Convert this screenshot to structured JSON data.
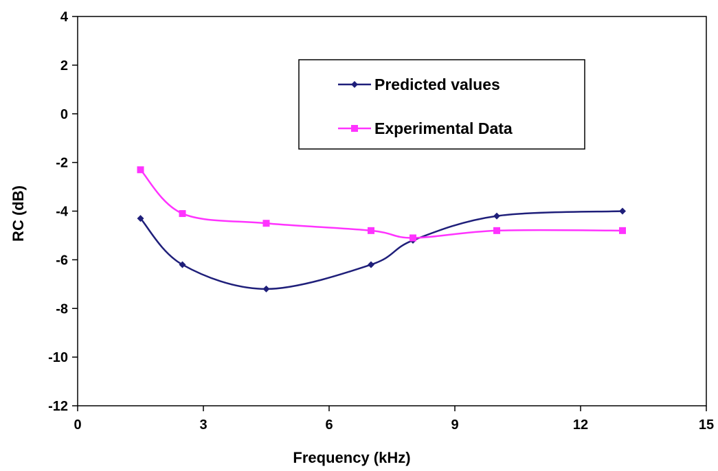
{
  "chart_data": {
    "type": "line",
    "title": "",
    "xlabel": "Frequency (kHz)",
    "ylabel": "RC (dB)",
    "xlim": [
      0,
      15
    ],
    "ylim": [
      -12,
      4
    ],
    "xticks": [
      0,
      3,
      6,
      9,
      12,
      15
    ],
    "yticks": [
      -12,
      -10,
      -8,
      -6,
      -4,
      -2,
      0,
      2,
      4
    ],
    "grid": false,
    "legend_position": "top-right",
    "series": [
      {
        "name": "Predicted values",
        "color": "#1f1f7a",
        "marker": "diamond",
        "x": [
          1.5,
          2.5,
          4.5,
          7,
          8,
          10,
          13
        ],
        "y": [
          -4.3,
          -6.2,
          -7.2,
          -6.2,
          -5.2,
          -4.2,
          -4.0
        ]
      },
      {
        "name": "Experimental Data",
        "color": "#ff33ff",
        "marker": "square",
        "x": [
          1.5,
          2.5,
          4.5,
          7,
          8,
          10,
          13
        ],
        "y": [
          -2.3,
          -4.1,
          -4.5,
          -4.8,
          -5.1,
          -4.8,
          -4.8
        ]
      }
    ]
  }
}
